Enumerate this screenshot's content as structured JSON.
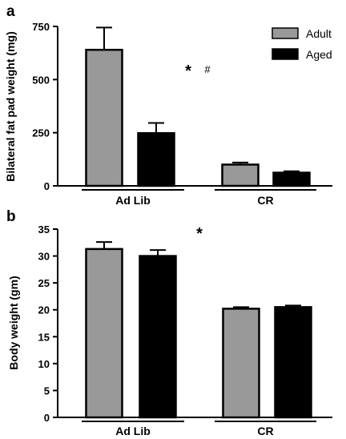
{
  "chart_data": [
    {
      "panel": "a",
      "type": "bar",
      "ylabel": "Bilateral fat pad weight (mg)",
      "ylim": [
        0,
        750
      ],
      "yticks": [
        "0",
        "250",
        "500",
        "750"
      ],
      "groups": [
        "Ad Lib",
        "CR"
      ],
      "series": [
        {
          "name": "Adult",
          "color": "#999999",
          "values": [
            640,
            100
          ],
          "errors": [
            105,
            10
          ]
        },
        {
          "name": "Aged",
          "color": "#000000",
          "values": [
            248,
            62
          ],
          "errors": [
            48,
            7
          ]
        }
      ],
      "annotations": [
        "*",
        "#"
      ],
      "legend_position": "top-right"
    },
    {
      "panel": "b",
      "type": "bar",
      "ylabel": "Body weight (gm)",
      "ylim": [
        0,
        35
      ],
      "yticks": [
        "0",
        "5",
        "10",
        "15",
        "20",
        "25",
        "30",
        "35"
      ],
      "groups": [
        "Ad Lib",
        "CR"
      ],
      "series": [
        {
          "name": "Adult",
          "color": "#999999",
          "values": [
            31.3,
            20.2
          ],
          "errors": [
            1.3,
            0.3
          ]
        },
        {
          "name": "Aged",
          "color": "#000000",
          "values": [
            30.0,
            20.5
          ],
          "errors": [
            1.1,
            0.3
          ]
        }
      ],
      "annotations": [
        "*"
      ]
    }
  ]
}
